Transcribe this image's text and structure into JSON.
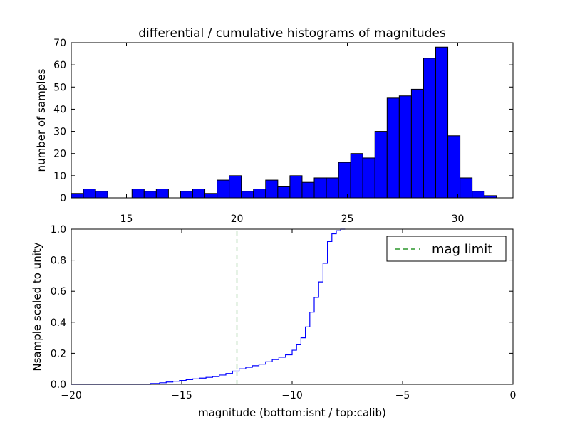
{
  "chart_data": [
    {
      "type": "bar",
      "title": "differential / cumulative histograms of magnitudes",
      "ylabel": "number of samples",
      "xlim": [
        12.5,
        32.5
      ],
      "ylim": [
        0,
        70
      ],
      "xticks": [
        "15",
        "20",
        "25",
        "30"
      ],
      "yticks": [
        "0",
        "10",
        "20",
        "30",
        "40",
        "50",
        "60",
        "70"
      ],
      "bar_color": "#0000ff",
      "bin_left_edges": [
        12.5,
        13.05,
        13.6,
        14.15,
        14.7,
        15.25,
        15.8,
        16.35,
        16.9,
        17.45,
        18.0,
        18.55,
        19.1,
        19.65,
        20.2,
        20.75,
        21.3,
        21.85,
        22.4,
        22.95,
        23.5,
        24.05,
        24.6,
        25.15,
        25.7,
        26.25,
        26.8,
        27.35,
        27.9,
        28.45,
        29.0,
        29.55,
        30.1,
        30.65,
        31.2
      ],
      "bin_width": 0.55,
      "values": [
        2,
        4,
        3,
        0,
        0,
        4,
        3,
        4,
        0,
        3,
        4,
        2,
        8,
        10,
        3,
        4,
        8,
        5,
        10,
        7,
        9,
        9,
        16,
        20,
        18,
        30,
        45,
        46,
        49,
        63,
        68,
        28,
        9,
        3,
        1
      ]
    },
    {
      "type": "line",
      "step": true,
      "ylabel": "Nsample scaled to unity",
      "xlabel": "magnitude (bottom:isnt / top:calib)",
      "xlim": [
        -20,
        0
      ],
      "ylim": [
        0,
        1.0
      ],
      "xticks": [
        "−20",
        "−15",
        "−10",
        "−5",
        "0"
      ],
      "yticks": [
        "0.0",
        "0.2",
        "0.4",
        "0.6",
        "0.8",
        "1.0"
      ],
      "series": [
        {
          "color": "#0000ff",
          "x": [
            -20,
            -17.5,
            -16.4,
            -16.0,
            -15.7,
            -15.4,
            -15.1,
            -14.8,
            -14.5,
            -14.2,
            -13.9,
            -13.6,
            -13.3,
            -13.0,
            -12.7,
            -12.4,
            -12.1,
            -11.8,
            -11.5,
            -11.2,
            -10.9,
            -10.6,
            -10.3,
            -10.0,
            -9.8,
            -9.6,
            -9.4,
            -9.2,
            -9.0,
            -8.8,
            -8.6,
            -8.4,
            -8.2,
            -8.0,
            -7.8,
            -7.6
          ],
          "y": [
            0,
            0,
            0.005,
            0.01,
            0.015,
            0.02,
            0.025,
            0.03,
            0.035,
            0.04,
            0.045,
            0.05,
            0.06,
            0.07,
            0.085,
            0.1,
            0.11,
            0.12,
            0.13,
            0.145,
            0.16,
            0.175,
            0.19,
            0.22,
            0.255,
            0.3,
            0.37,
            0.465,
            0.56,
            0.66,
            0.78,
            0.92,
            0.97,
            0.99,
            1.0,
            1.0
          ]
        },
        {
          "name": "mag limit",
          "color": "#008000",
          "style": "dashed",
          "x": [
            -12.5,
            -12.5
          ],
          "y": [
            0,
            1.0
          ]
        }
      ],
      "legend": {
        "placement": "top-right",
        "entries": [
          "mag limit"
        ]
      }
    }
  ]
}
